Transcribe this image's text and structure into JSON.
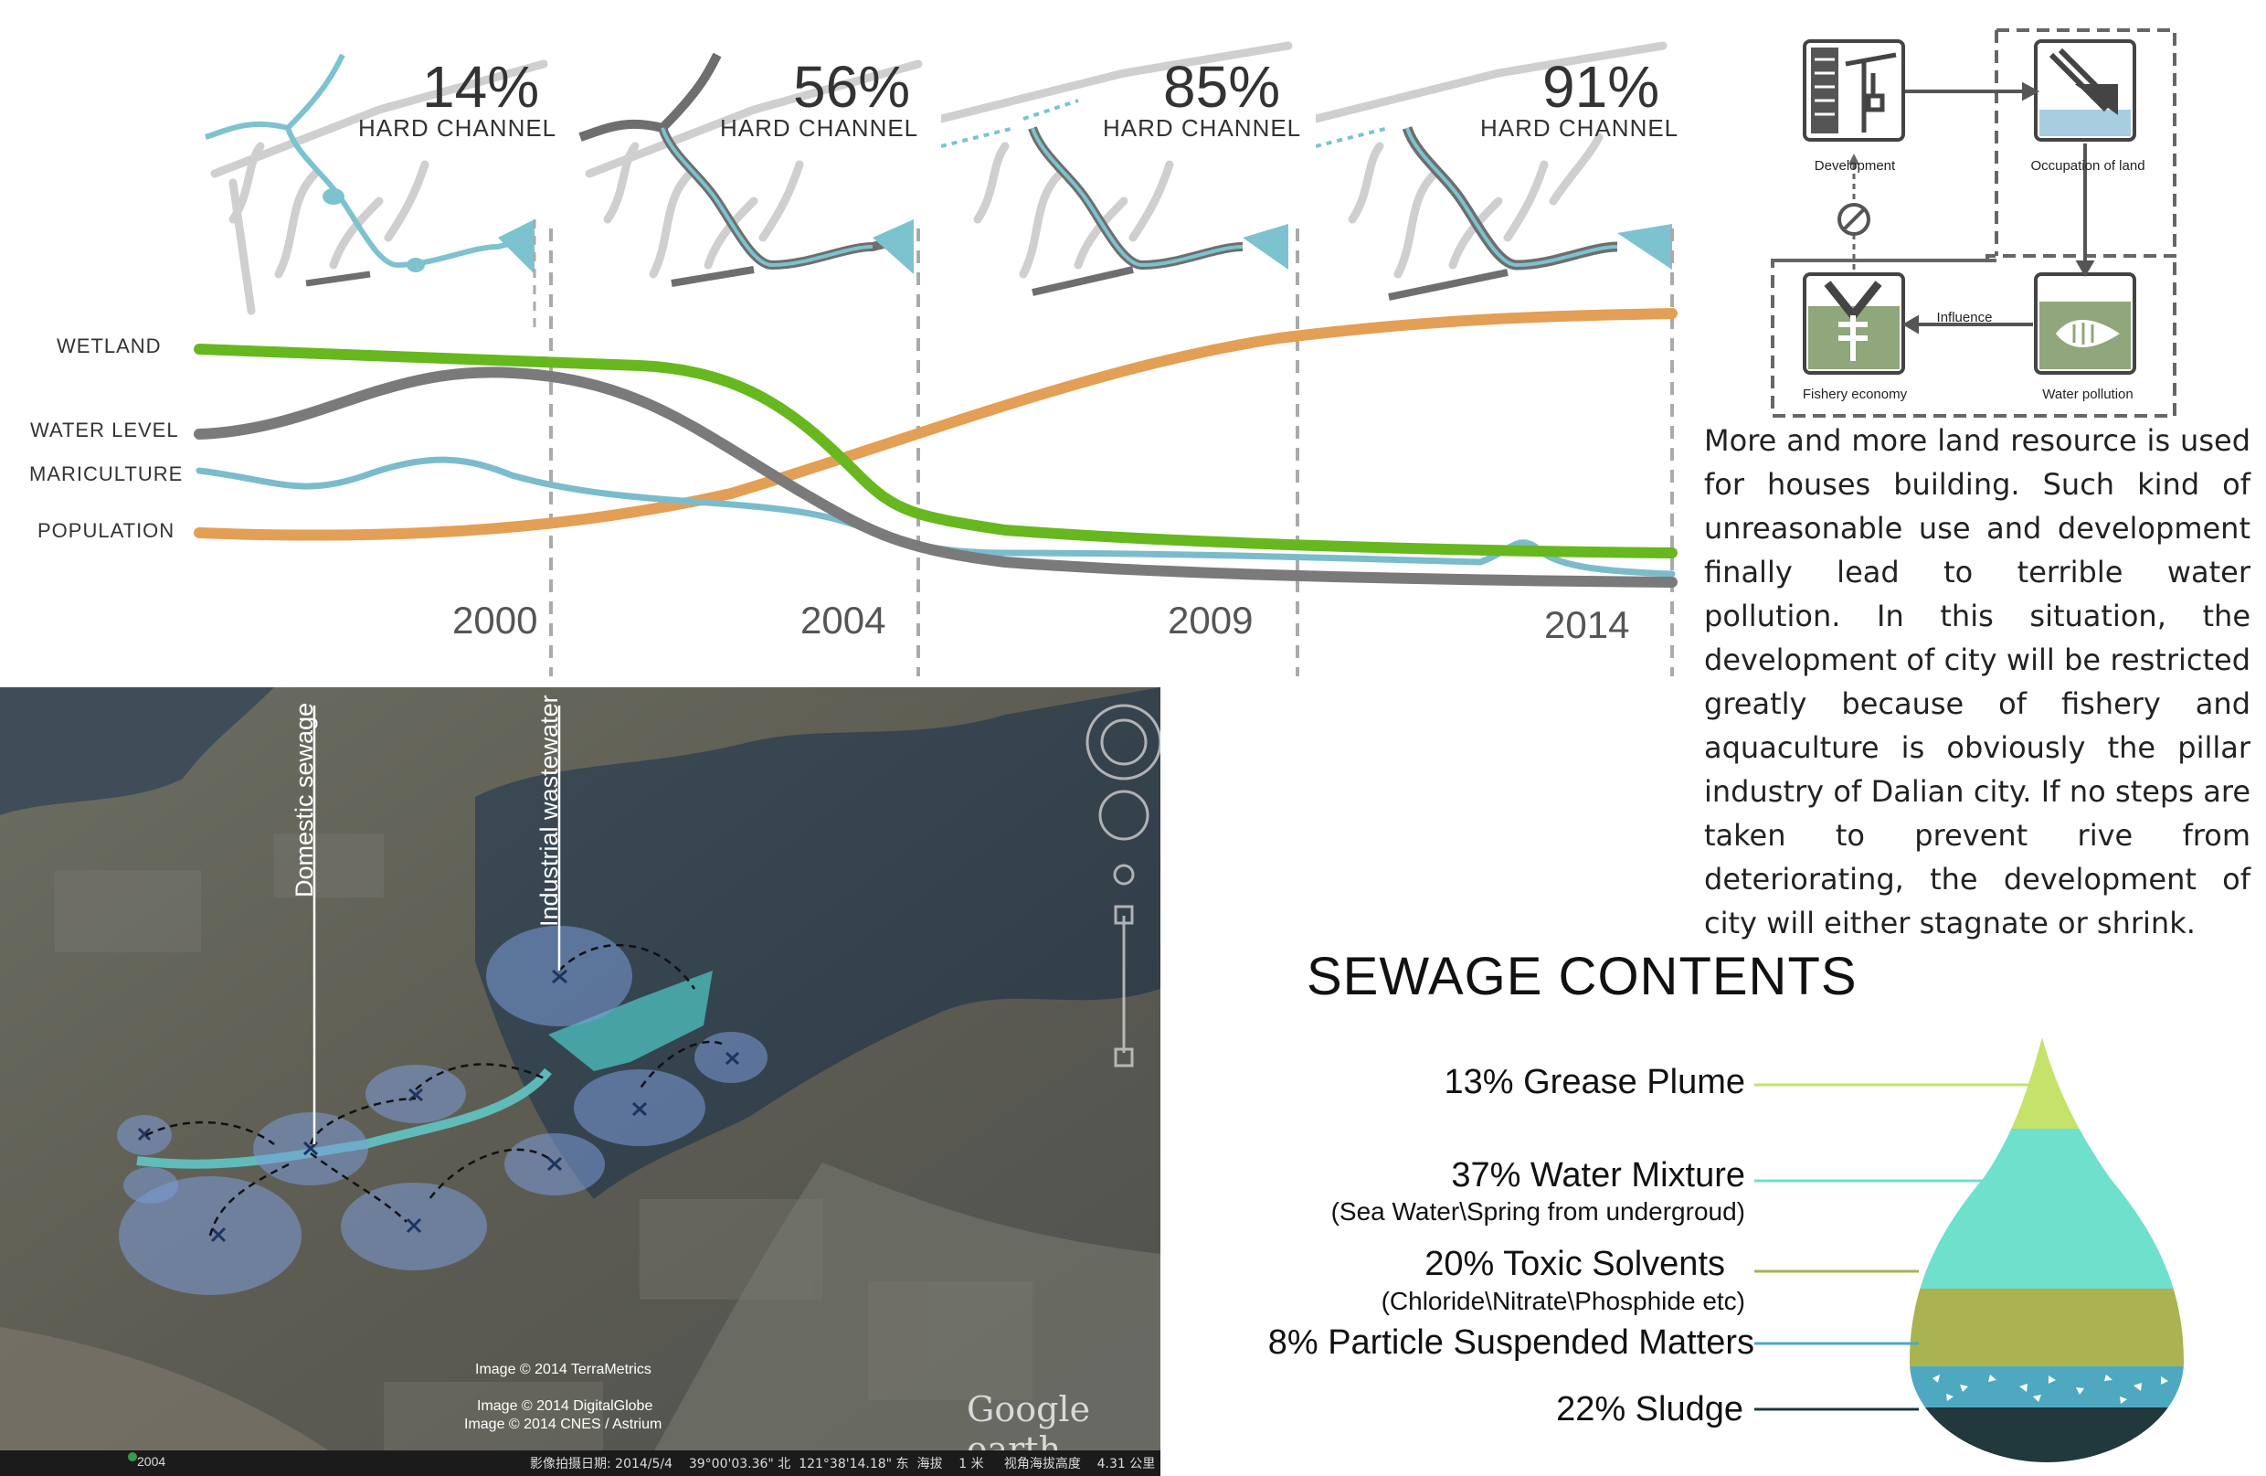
{
  "timeline": {
    "stages": [
      {
        "percent": "14%",
        "label": "HARD CHANNEL"
      },
      {
        "percent": "56%",
        "label": "HARD CHANNEL"
      },
      {
        "percent": "85%",
        "label": "HARD CHANNEL"
      },
      {
        "percent": "91%",
        "label": "HARD CHANNEL"
      }
    ],
    "series_labels": [
      "WETLAND",
      "WATER LEVEL",
      "MARICULTURE",
      "POPULATION"
    ],
    "years": [
      "2000",
      "2004",
      "2009",
      "2014"
    ],
    "colors": {
      "wetland": "#66b81e",
      "water_level": "#7a7a7a",
      "mariculture": "#7bbccc",
      "population": "#e39f55",
      "river": "#7cc3cf"
    }
  },
  "flow": {
    "nodes": [
      "Development",
      "Occupation of land",
      "Water pollution",
      "Fishery economy"
    ],
    "edge_label": "Influence"
  },
  "paragraph": "More and more land resource is used for houses building. Such kind of unreasonable use and development finally lead to terrible water pollution. In this situation, the development of city will be restricted greatly because of fishery and aquaculture is obviously the pillar industry of Dalian city. If no steps are taken to prevent rive from deteriorating, the development of city will either stagnate or shrink.",
  "satellite": {
    "callouts": [
      "Domestic sewage",
      "Industrial wastewater"
    ],
    "credits": [
      "Image © 2014 TerraMetrics",
      "Image © 2014 DigitalGlobe",
      "Image © 2014 CNES / Astrium"
    ],
    "logo": "Google earth",
    "year": "2004",
    "status_bar": "影像拍摄日期: 2014/5/4    39°00'03.36\" 北  121°38'14.18\" 东  海拔    1 米     视角海拔高度    4.31 公里"
  },
  "sewage": {
    "title": "SEWAGE CONTENTS",
    "items": [
      {
        "label": "13% Grease Plume",
        "sub": "",
        "color": "#c5e26b"
      },
      {
        "label": "37% Water Mixture",
        "sub": "(Sea Water\\Spring from undergroud)",
        "color": "#6fe0cc"
      },
      {
        "label": "20% Toxic Solvents",
        "sub": "(Chloride\\Nitrate\\Phosphide etc)",
        "color": "#aab34f"
      },
      {
        "label": "8% Particle Suspended Matters",
        "sub": "",
        "color": "#4ea9c0"
      },
      {
        "label": "22% Sludge",
        "sub": "",
        "color": "#21383c"
      }
    ]
  }
}
